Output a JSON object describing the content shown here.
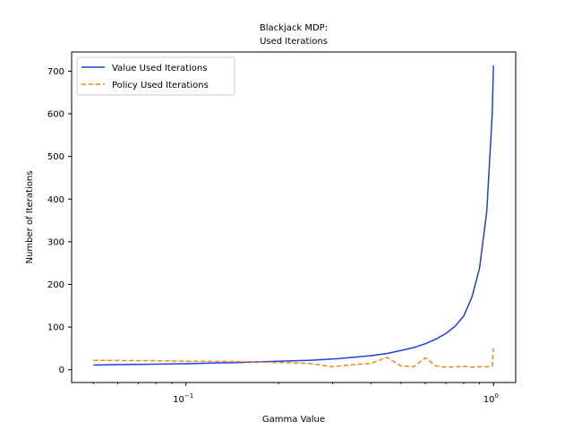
{
  "chart_data": {
    "type": "line",
    "title_lines": [
      "Blackjack MDP:",
      "Used Iterations"
    ],
    "xlabel": "Gamma Value",
    "ylabel": "Number of Iterations",
    "xscale": "log",
    "xlim": [
      0.0425,
      1.18
    ],
    "ylim": [
      -30,
      745
    ],
    "grid": false,
    "legend_position": "top-left",
    "x_ticks": [
      {
        "value": 0.1,
        "base": "10",
        "exp": "−1"
      },
      {
        "value": 1,
        "base": "10",
        "exp": "0"
      }
    ],
    "y_ticks": [
      "0",
      "100",
      "200",
      "300",
      "400",
      "500",
      "600",
      "700"
    ],
    "series": [
      {
        "name": "Value Used Iterations",
        "color": "#1f3fe0",
        "style": "solid",
        "x": [
          0.05,
          0.08,
          0.1,
          0.15,
          0.2,
          0.25,
          0.3,
          0.35,
          0.4,
          0.45,
          0.5,
          0.55,
          0.6,
          0.65,
          0.7,
          0.75,
          0.8,
          0.85,
          0.9,
          0.95,
          0.99,
          0.999
        ],
        "y": [
          11,
          13,
          14,
          17,
          20,
          22,
          25,
          29,
          33,
          38,
          45,
          52,
          61,
          72,
          85,
          102,
          126,
          170,
          238,
          370,
          600,
          713
        ]
      },
      {
        "name": "Policy Used Iterations",
        "color": "#ff7f0e",
        "style": "dashed",
        "x": [
          0.05,
          0.08,
          0.1,
          0.15,
          0.2,
          0.25,
          0.3,
          0.35,
          0.4,
          0.45,
          0.5,
          0.55,
          0.6,
          0.65,
          0.7,
          0.75,
          0.8,
          0.85,
          0.9,
          0.95,
          0.99,
          0.999
        ],
        "y": [
          22,
          21,
          20,
          19,
          17,
          15,
          7,
          12,
          15,
          29,
          9,
          7,
          28,
          9,
          6,
          7,
          8,
          6,
          7,
          7,
          9,
          50
        ]
      }
    ]
  }
}
